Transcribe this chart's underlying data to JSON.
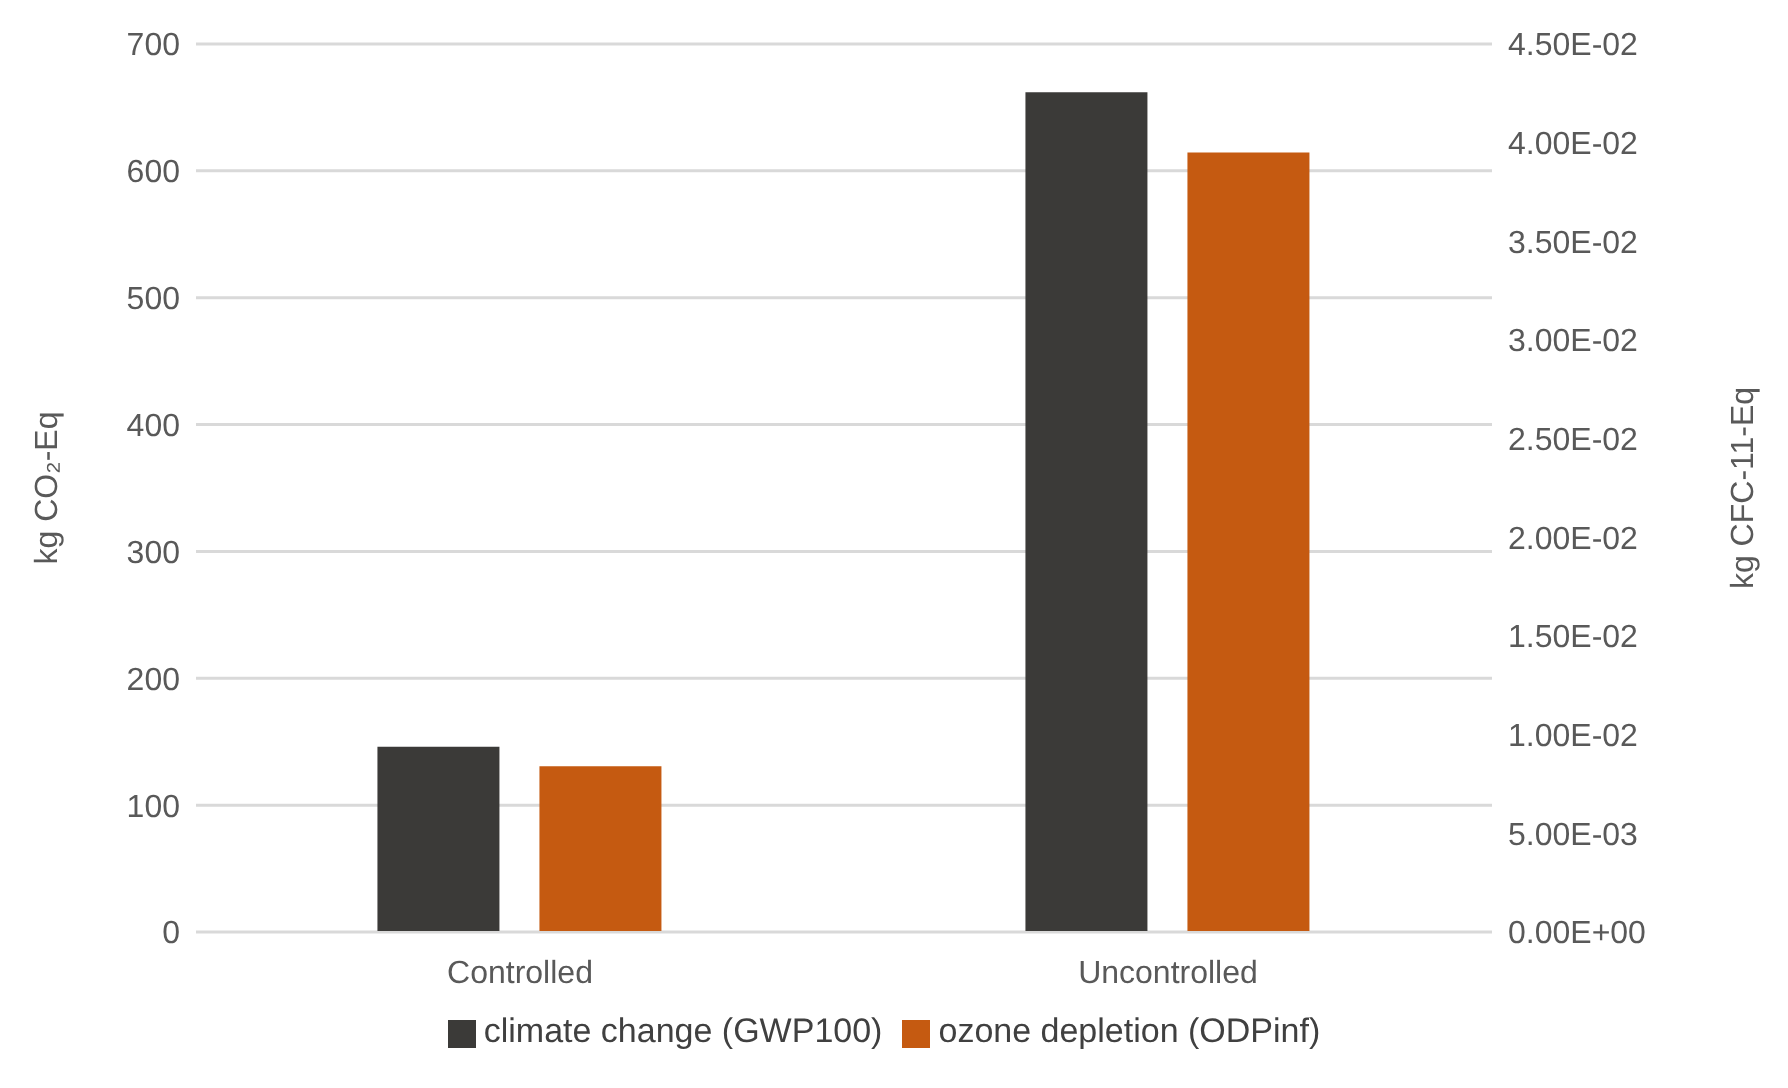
{
  "chart_data": {
    "type": "bar",
    "categories": [
      "Controlled",
      "Uncontrolled"
    ],
    "ylabel": "kg CO₂-Eq",
    "y2label": "kg CFC-11-Eq",
    "series": [
      {
        "name": "climate change (GWP100)",
        "color": "#3b3a38",
        "values": [
          146,
          662
        ]
      },
      {
        "name": "ozone depletion (ODPinf)",
        "color": "#c55a11",
        "values": [
          0.0084,
          0.0395
        ],
        "axis": "y2"
      }
    ],
    "ylim": [
      0,
      700
    ],
    "yticks": [
      0,
      100,
      200,
      300,
      400,
      500,
      600,
      700
    ],
    "y2lim": [
      0,
      0.045
    ],
    "y2ticks": [
      {
        "value": 0,
        "label": "0.00E+00"
      },
      {
        "value": 0.005,
        "label": "5.00E-03"
      },
      {
        "value": 0.01,
        "label": "1.00E-02"
      },
      {
        "value": 0.015,
        "label": "1.50E-02"
      },
      {
        "value": 0.02,
        "label": "2.00E-02"
      },
      {
        "value": 0.025,
        "label": "2.50E-02"
      },
      {
        "value": 0.03,
        "label": "3.00E-02"
      },
      {
        "value": 0.035,
        "label": "3.50E-02"
      },
      {
        "value": 0.04,
        "label": "4.00E-02"
      },
      {
        "value": 0.045,
        "label": "4.50E-02"
      }
    ],
    "grid": "y",
    "legend": "bottom"
  }
}
